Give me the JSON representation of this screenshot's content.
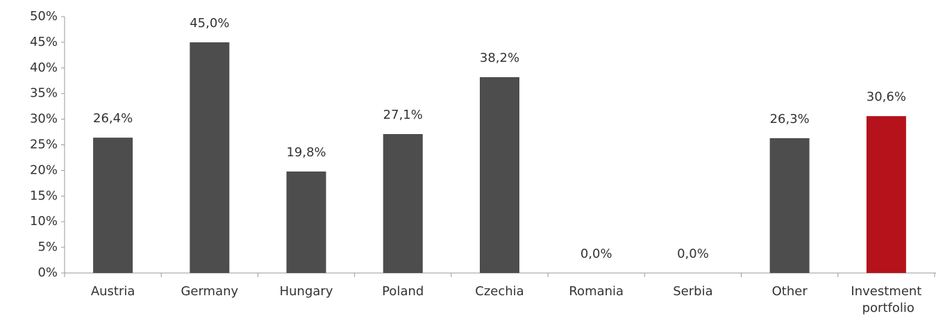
{
  "chart_data": {
    "type": "bar",
    "categories": [
      "Austria",
      "Germany",
      "Hungary",
      "Poland",
      "Czechia",
      "Romania",
      "Serbia",
      "Other",
      "Investment portfolio"
    ],
    "values": [
      26.4,
      45.0,
      19.8,
      27.1,
      38.2,
      0.0,
      0.0,
      26.3,
      30.6
    ],
    "value_labels": [
      "26,4%",
      "45,0%",
      "19,8%",
      "27,1%",
      "38,2%",
      "0,0%",
      "0,0%",
      "26,3%",
      "30,6%"
    ],
    "colors": [
      "#4d4d4d",
      "#4d4d4d",
      "#4d4d4d",
      "#4d4d4d",
      "#4d4d4d",
      "#4d4d4d",
      "#4d4d4d",
      "#4d4d4d",
      "#b5121b"
    ],
    "ylim": [
      0,
      50
    ],
    "yticks": [
      {
        "value": 0,
        "label": "0%"
      },
      {
        "value": 5,
        "label": "5%"
      },
      {
        "value": 10,
        "label": "10%"
      },
      {
        "value": 15,
        "label": "15%"
      },
      {
        "value": 20,
        "label": "20%"
      },
      {
        "value": 25,
        "label": "25%"
      },
      {
        "value": 30,
        "label": "30%"
      },
      {
        "value": 35,
        "label": "35%"
      },
      {
        "value": 40,
        "label": "40%"
      },
      {
        "value": 45,
        "label": "45%"
      },
      {
        "value": 50,
        "label": "50%"
      }
    ],
    "grid": false
  }
}
